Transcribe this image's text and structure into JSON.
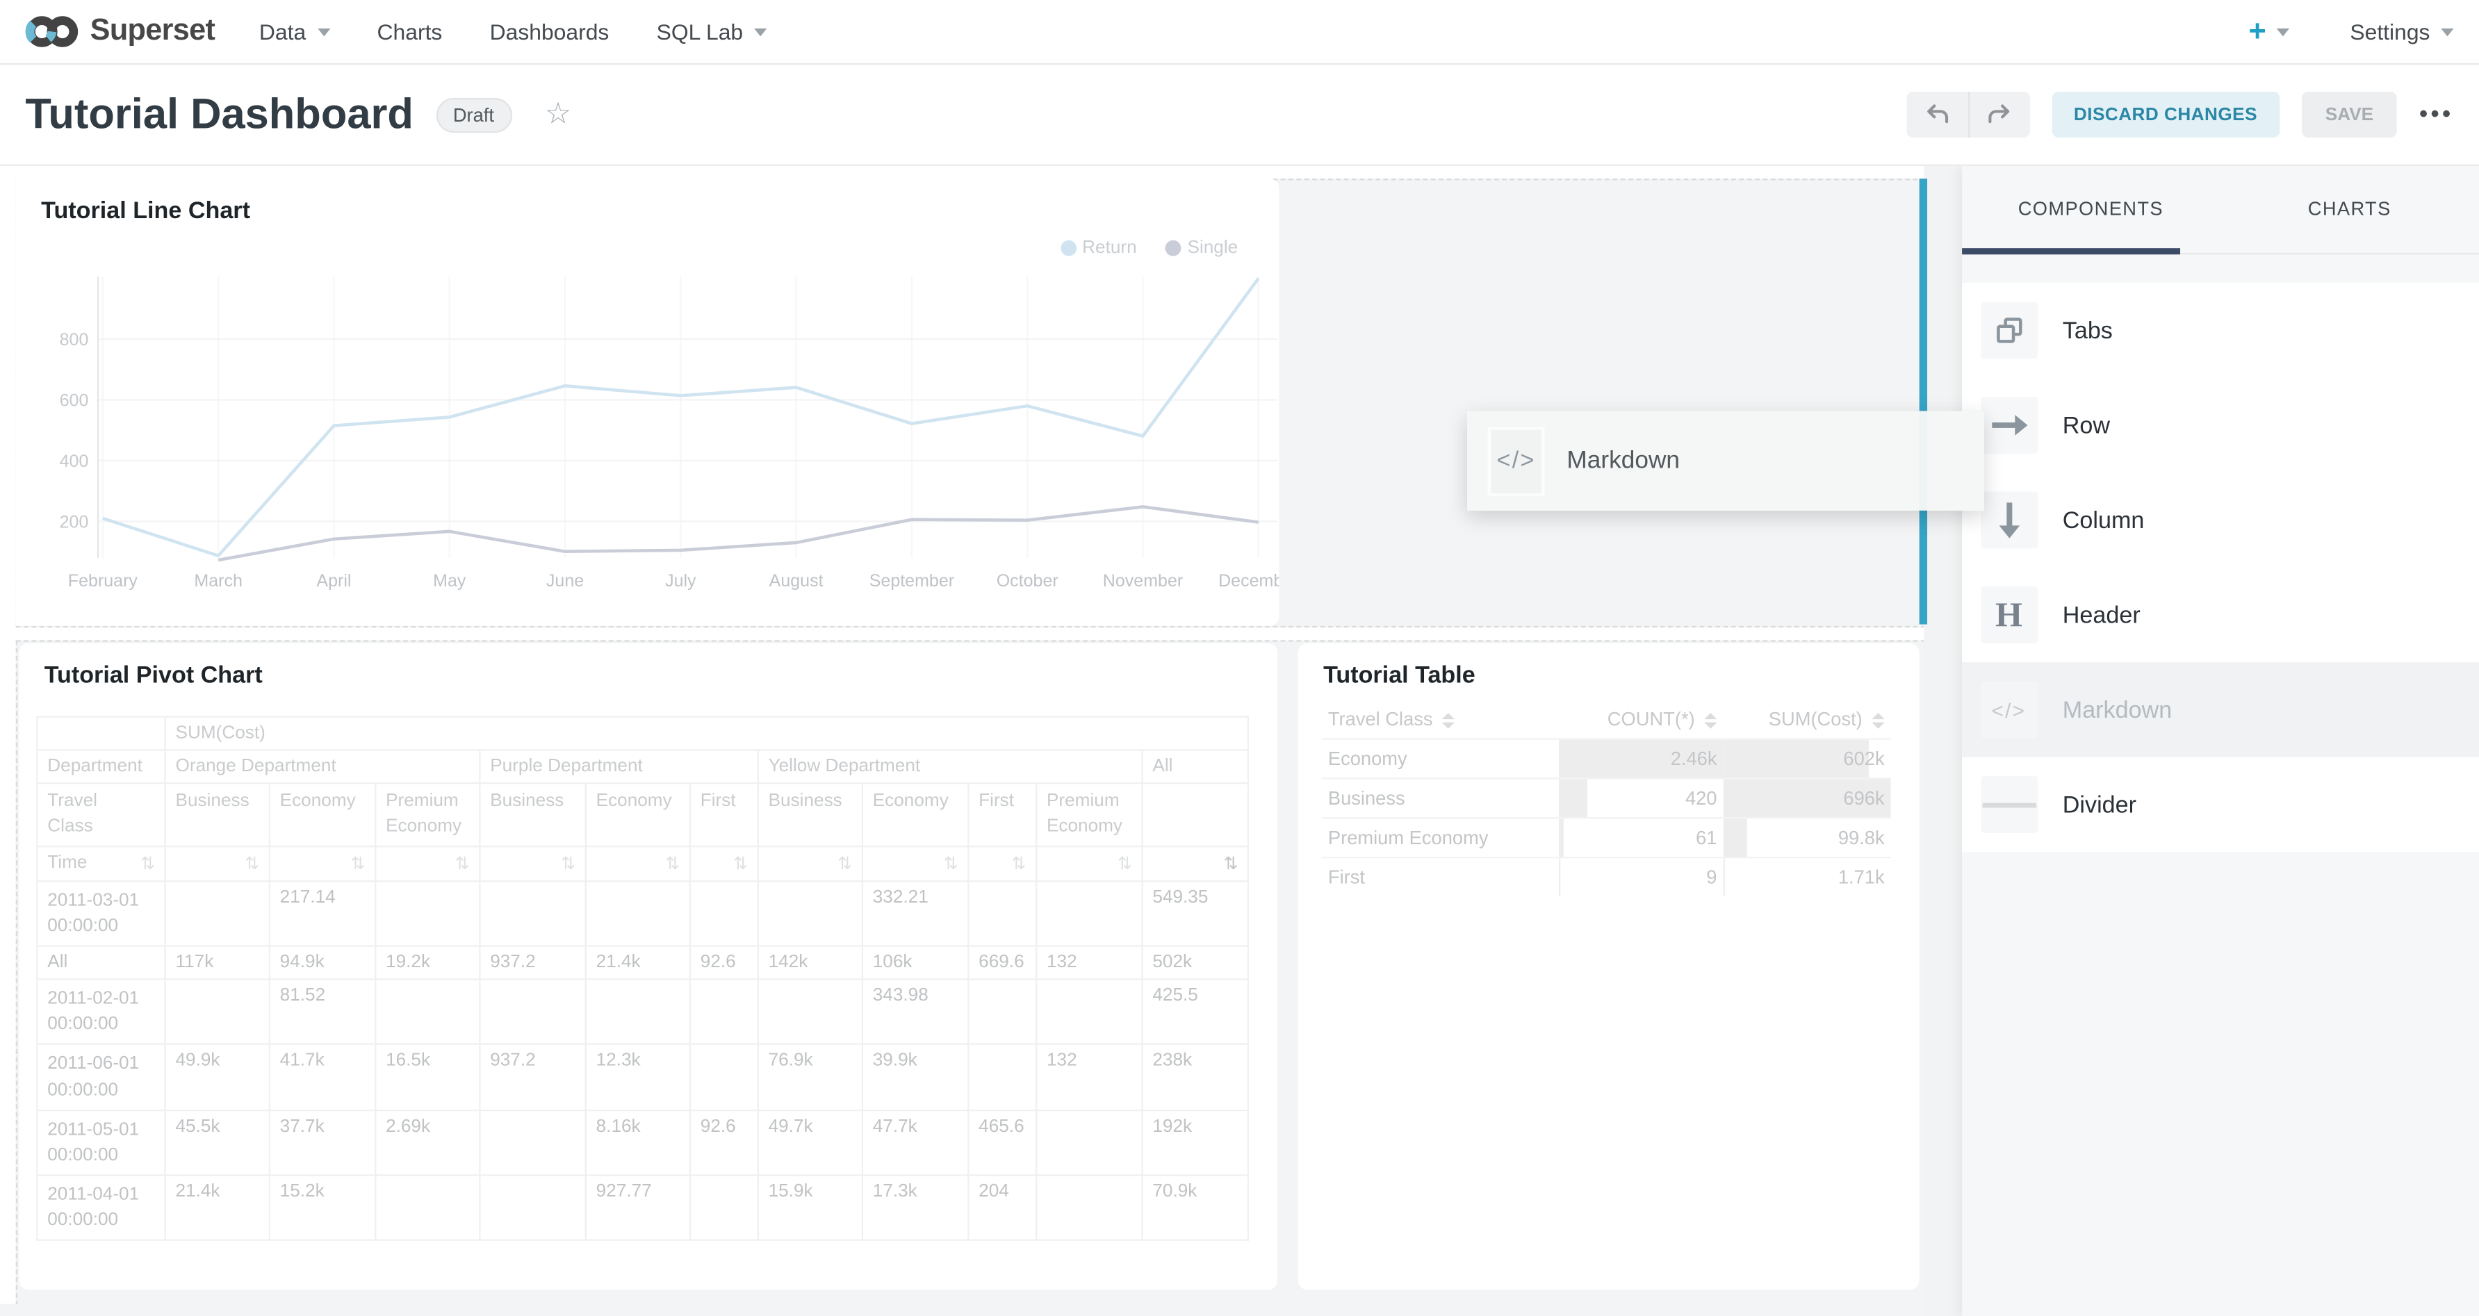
{
  "nav": {
    "brand": "Superset",
    "items": [
      {
        "label": "Data",
        "caret": true
      },
      {
        "label": "Charts",
        "caret": false
      },
      {
        "label": "Dashboards",
        "caret": false
      },
      {
        "label": "SQL Lab",
        "caret": true
      }
    ],
    "plus_label": "+",
    "settings_label": "Settings"
  },
  "header": {
    "title": "Tutorial Dashboard",
    "status_badge": "Draft",
    "discard_label": "DISCARD CHANGES",
    "save_label": "SAVE",
    "more_label": "•••"
  },
  "chart_data": {
    "type": "line",
    "title": "Tutorial Line Chart",
    "x": [
      "February",
      "March",
      "April",
      "May",
      "June",
      "July",
      "August",
      "September",
      "October",
      "November",
      "December"
    ],
    "series": [
      {
        "name": "Return",
        "color": "#cfe4f0",
        "values": [
          210,
          87,
          515,
          543,
          646,
          614,
          641,
          522,
          580,
          481,
          1000
        ]
      },
      {
        "name": "Single",
        "color": "#c9cdd8",
        "values": [
          null,
          73,
          142,
          167,
          101,
          105,
          130,
          206,
          204,
          248,
          197
        ]
      }
    ],
    "yticks": [
      200,
      400,
      600,
      800
    ],
    "ylim": [
      0,
      1000
    ],
    "legend_position": "top-right",
    "grid": true
  },
  "pivot_chart": {
    "title": "Tutorial Pivot Chart",
    "metric_header": "SUM(Cost)",
    "department_row": {
      "label": "Department",
      "groups": [
        {
          "label": "Orange Department",
          "span": 3
        },
        {
          "label": "Purple Department",
          "span": 3
        },
        {
          "label": "Yellow Department",
          "span": 4
        },
        {
          "label": "All",
          "span": 1
        }
      ]
    },
    "travel_class_row": {
      "label": "Travel Class",
      "cols": [
        "Business",
        "Economy",
        "Premium Economy",
        "Business",
        "Economy",
        "First",
        "Business",
        "Economy",
        "First",
        "Premium Economy",
        ""
      ]
    },
    "time_row": {
      "label": "Time",
      "sorted_column_index": 11
    },
    "rows": [
      {
        "time": "2011-03-01 00:00:00",
        "values": [
          "",
          "217.14",
          "",
          "",
          "",
          "",
          "",
          "332.21",
          "",
          "",
          "549.35"
        ]
      },
      {
        "time": "All",
        "values": [
          "117k",
          "94.9k",
          "19.2k",
          "937.2",
          "21.4k",
          "92.6",
          "142k",
          "106k",
          "669.6",
          "132",
          "502k"
        ]
      },
      {
        "time": "2011-02-01 00:00:00",
        "values": [
          "",
          "81.52",
          "",
          "",
          "",
          "",
          "",
          "343.98",
          "",
          "",
          "425.5"
        ]
      },
      {
        "time": "2011-06-01 00:00:00",
        "values": [
          "49.9k",
          "41.7k",
          "16.5k",
          "937.2",
          "12.3k",
          "",
          "76.9k",
          "39.9k",
          "",
          "132",
          "238k"
        ]
      },
      {
        "time": "2011-05-01 00:00:00",
        "values": [
          "45.5k",
          "37.7k",
          "2.69k",
          "",
          "8.16k",
          "92.6",
          "49.7k",
          "47.7k",
          "465.6",
          "",
          "192k"
        ]
      },
      {
        "time": "2011-04-01 00:00:00",
        "values": [
          "21.4k",
          "15.2k",
          "",
          "",
          "927.77",
          "",
          "15.9k",
          "17.3k",
          "204",
          "",
          "70.9k"
        ]
      }
    ]
  },
  "data_table": {
    "title": "Tutorial Table",
    "columns": [
      "Travel Class",
      "COUNT(*)",
      "SUM(Cost)"
    ],
    "rows": [
      {
        "travel_class": "Economy",
        "count": "2.46k",
        "sum": "602k",
        "count_bar": 100,
        "sum_bar": 87
      },
      {
        "travel_class": "Business",
        "count": "420",
        "sum": "696k",
        "count_bar": 17,
        "sum_bar": 100
      },
      {
        "travel_class": "Premium Economy",
        "count": "61",
        "sum": "99.8k",
        "count_bar": 2.5,
        "sum_bar": 14
      },
      {
        "travel_class": "First",
        "count": "9",
        "sum": "1.71k",
        "count_bar": 0.5,
        "sum_bar": 0.3
      }
    ]
  },
  "builder_panel": {
    "tabs": [
      {
        "label": "COMPONENTS",
        "active": true
      },
      {
        "label": "CHARTS",
        "active": false
      }
    ],
    "items": [
      {
        "label": "Tabs",
        "icon": "tabs-icon",
        "dragging": false
      },
      {
        "label": "Row",
        "icon": "row-icon",
        "dragging": false
      },
      {
        "label": "Column",
        "icon": "column-icon",
        "dragging": false
      },
      {
        "label": "Header",
        "icon": "header-icon",
        "dragging": false
      },
      {
        "label": "Markdown",
        "icon": "markdown-icon",
        "dragging": true
      },
      {
        "label": "Divider",
        "icon": "divider-icon",
        "dragging": false
      }
    ]
  },
  "drag_ghost": {
    "label": "Markdown",
    "icon": "markdown-code-icon"
  },
  "colors": {
    "accent": "#1f9fc4",
    "drop_indicator": "#36a4c5",
    "tab_underline": "#3d4c66",
    "discard_bg": "#e3f1f7",
    "discard_text": "#2a87a5"
  }
}
